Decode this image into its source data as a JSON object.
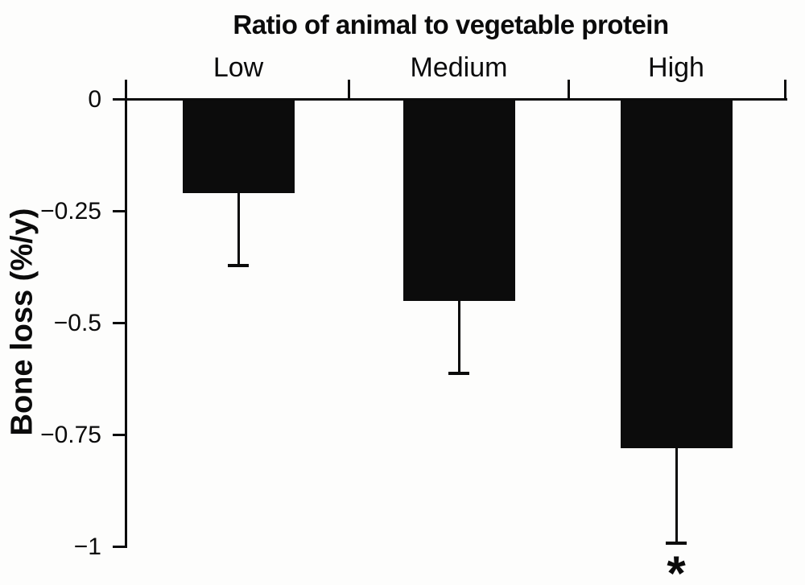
{
  "figure": {
    "background_color": "#fdfdfc",
    "ink_color": "#0b0b0b"
  },
  "chart_data": {
    "type": "bar",
    "title": "Ratio of animal to vegetable protein",
    "ylabel": "Bone loss (%/y)",
    "xlabel": "",
    "categories": [
      "Low",
      "Medium",
      "High"
    ],
    "values": [
      -0.21,
      -0.45,
      -0.78
    ],
    "error_down": [
      0.16,
      0.16,
      0.21
    ],
    "error_bar_ends": [
      -0.37,
      -0.61,
      -0.99
    ],
    "significance": [
      "",
      "",
      "*"
    ],
    "ytick_values": [
      0,
      -0.25,
      -0.5,
      -0.75,
      -1
    ],
    "ytick_labels": [
      "0",
      "−0.25",
      "−0.5",
      "−0.75",
      "−1"
    ],
    "ylim": [
      -1,
      0
    ],
    "grid": false,
    "legend": false,
    "bar_color": "#0c0c0c",
    "error_direction": "down"
  }
}
